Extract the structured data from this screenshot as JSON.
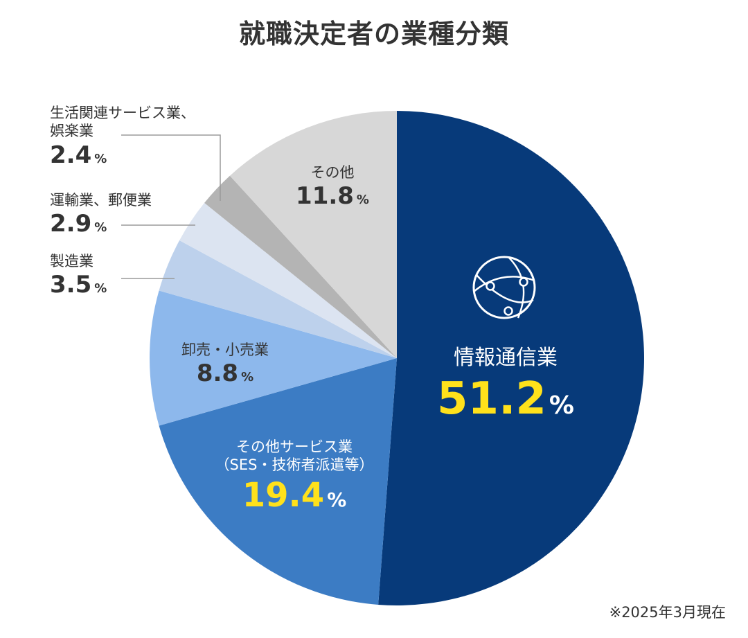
{
  "title": "就職決定者の業種分類",
  "note": "※2025年3月現在",
  "chart_data": {
    "type": "pie",
    "title": "就職決定者の業種分類",
    "unit": "%",
    "slices": [
      {
        "label": "情報通信業",
        "value": 51.2,
        "color": "#073A7A"
      },
      {
        "label": "その他サービス業\n（SES・技術者派遣等）",
        "value": 19.4,
        "color": "#3C7CC4"
      },
      {
        "label": "卸売・小売業",
        "value": 8.8,
        "color": "#8DB8EC"
      },
      {
        "label": "製造業",
        "value": 3.5,
        "color": "#BDD1EC"
      },
      {
        "label": "運輸業、郵便業",
        "value": 2.9,
        "color": "#DCE4F1"
      },
      {
        "label": "生活関連サービス業、\n娯楽業",
        "value": 2.4,
        "color": "#B4B4B4"
      },
      {
        "label": "その他",
        "value": 11.8,
        "color": "#D7D7D7"
      }
    ]
  },
  "labels": {
    "s0": {
      "name": "情報通信業",
      "pct": "51.2",
      "unit": "%"
    },
    "s1": {
      "name1": "その他サービス業",
      "name2": "（SES・技術者派遣等）",
      "pct": "19.4",
      "unit": "%"
    },
    "s2": {
      "name": "卸売・小売業",
      "pct": "8.8",
      "unit": "%"
    },
    "s3": {
      "name": "製造業",
      "pct": "3.5",
      "unit": "%"
    },
    "s4": {
      "name": "運輸業、郵便業",
      "pct": "2.9",
      "unit": "%"
    },
    "s5": {
      "name1": "生活関連サービス業、",
      "name2": "娯楽業",
      "pct": "2.4",
      "unit": "%"
    },
    "s6": {
      "name": "その他",
      "pct": "11.8",
      "unit": "%"
    }
  },
  "icon": "globe-network-icon",
  "colors": {
    "highlight": "#FFE11B",
    "text_dark": "#333333",
    "text_light": "#FFFFFF",
    "leader": "#9A9A9A"
  }
}
